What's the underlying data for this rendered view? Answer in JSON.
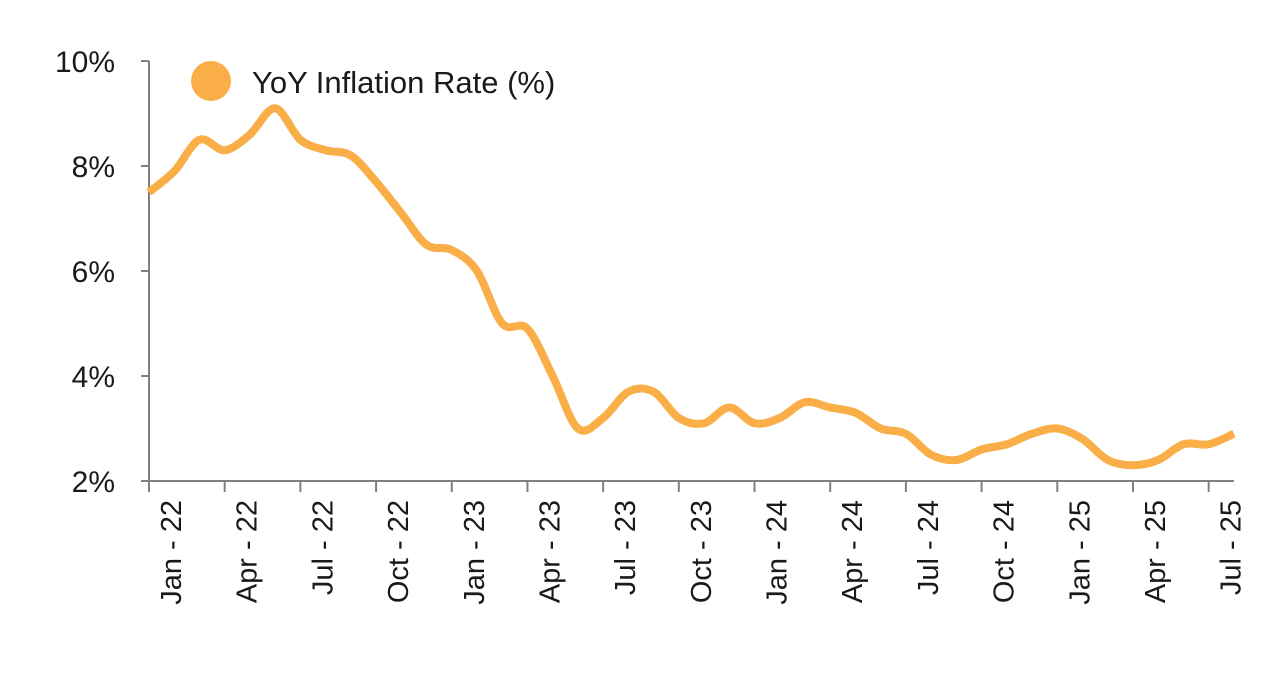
{
  "chart_data": {
    "type": "line",
    "title": "",
    "xlabel": "",
    "ylabel": "",
    "ylim": [
      2,
      10
    ],
    "yticks": [
      "2%",
      "4%",
      "6%",
      "8%",
      "10%"
    ],
    "ytick_values": [
      2,
      4,
      6,
      8,
      10
    ],
    "xtick_labels": [
      "Jan - 22",
      "Apr - 22",
      "Jul - 22",
      "Oct - 22",
      "Jan - 23",
      "Apr - 23",
      "Jul - 23",
      "Oct - 23",
      "Jan - 24",
      "Apr - 24",
      "Jul - 24",
      "Oct - 24",
      "Jan - 25",
      "Apr - 25",
      "Jul - 25"
    ],
    "x": [
      "Jan 22",
      "Feb 22",
      "Mar 22",
      "Apr 22",
      "May 22",
      "Jun 22",
      "Jul 22",
      "Aug 22",
      "Sep 22",
      "Oct 22",
      "Nov 22",
      "Dec 22",
      "Jan 23",
      "Feb 23",
      "Mar 23",
      "Apr 23",
      "May 23",
      "Jun 23",
      "Jul 23",
      "Aug 23",
      "Sep 23",
      "Oct 23",
      "Nov 23",
      "Dec 23",
      "Jan 24",
      "Feb 24",
      "Mar 24",
      "Apr 24",
      "May 24",
      "Jun 24",
      "Jul 24",
      "Aug 24",
      "Sep 24",
      "Oct 24",
      "Nov 24",
      "Dec 24",
      "Jan 25",
      "Feb 25",
      "Mar 25",
      "Apr 25",
      "May 25",
      "Jun 25",
      "Jul 25",
      "Aug 25"
    ],
    "series": [
      {
        "name": "YoY Inflation Rate (%)",
        "color": "#F9AE48",
        "values": [
          7.5,
          7.9,
          8.5,
          8.3,
          8.6,
          9.1,
          8.5,
          8.3,
          8.2,
          7.7,
          7.1,
          6.5,
          6.4,
          6.0,
          5.0,
          4.9,
          4.0,
          3.0,
          3.2,
          3.7,
          3.7,
          3.2,
          3.1,
          3.4,
          3.1,
          3.2,
          3.5,
          3.4,
          3.3,
          3.0,
          2.9,
          2.5,
          2.4,
          2.6,
          2.7,
          2.9,
          3.0,
          2.8,
          2.4,
          2.3,
          2.4,
          2.7,
          2.7,
          2.9
        ]
      }
    ],
    "legend": {
      "label": "YoY Inflation Rate (%)",
      "position": "top-left"
    },
    "grid": false,
    "axis_color": "#808080"
  }
}
